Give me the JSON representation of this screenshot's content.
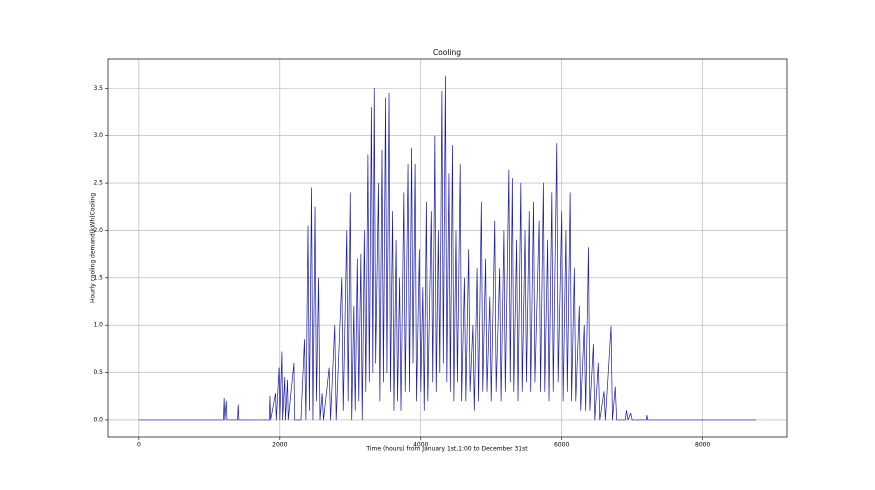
{
  "chart_data": {
    "type": "line",
    "title": "Cooling",
    "xlabel": "Time (hours) from January 1st,1:00 to December 31st",
    "ylabel": "Hourly cooling demand(kWh)Cooling",
    "color": "#1a1aa6",
    "grid": true,
    "xlim": [
      -438,
      9197
    ],
    "ylim": [
      -0.18,
      3.81
    ],
    "xticks": [
      0,
      2000,
      4000,
      6000,
      8000
    ],
    "yticks": [
      {
        "value": 0,
        "label": "0.0"
      },
      0.5,
      {
        "value": 1,
        "label": "1.0"
      },
      1.5,
      {
        "value": 2,
        "label": "2.0"
      },
      2.5,
      {
        "value": 3,
        "label": "3.0"
      },
      3.5
    ],
    "x": [
      0,
      1200,
      1210,
      1220,
      1240,
      1250,
      1400,
      1410,
      1420,
      1850,
      1860,
      1870,
      1940,
      1950,
      1990,
      2000,
      2030,
      2040,
      2070,
      2080,
      2110,
      2120,
      2200,
      2210,
      2300,
      2350,
      2370,
      2400,
      2420,
      2450,
      2470,
      2500,
      2520,
      2550,
      2570,
      2600,
      2620,
      2700,
      2720,
      2780,
      2800,
      2880,
      2900,
      2950,
      2970,
      3000,
      3020,
      3050,
      3070,
      3100,
      3120,
      3150,
      3170,
      3200,
      3220,
      3250,
      3270,
      3300,
      3320,
      3340,
      3360,
      3400,
      3420,
      3450,
      3470,
      3500,
      3520,
      3550,
      3570,
      3600,
      3620,
      3650,
      3670,
      3700,
      3720,
      3760,
      3780,
      3820,
      3840,
      3870,
      3890,
      3920,
      3940,
      3980,
      4000,
      4030,
      4050,
      4080,
      4100,
      4150,
      4170,
      4200,
      4220,
      4250,
      4270,
      4300,
      4320,
      4350,
      4370,
      4400,
      4420,
      4450,
      4470,
      4500,
      4520,
      4560,
      4580,
      4620,
      4640,
      4680,
      4700,
      4740,
      4760,
      4800,
      4820,
      4860,
      4880,
      4920,
      4940,
      4980,
      5000,
      5050,
      5070,
      5120,
      5140,
      5180,
      5200,
      5250,
      5270,
      5300,
      5320,
      5360,
      5380,
      5420,
      5440,
      5480,
      5500,
      5540,
      5560,
      5600,
      5620,
      5680,
      5700,
      5740,
      5760,
      5800,
      5820,
      5860,
      5880,
      5930,
      5950,
      6000,
      6020,
      6060,
      6080,
      6120,
      6140,
      6180,
      6200,
      6250,
      6270,
      6320,
      6340,
      6380,
      6400,
      6450,
      6470,
      6520,
      6540,
      6600,
      6620,
      6700,
      6720,
      6760,
      6780,
      6900,
      6920,
      6940,
      6980,
      7000,
      7200,
      7210,
      7220,
      8759
    ],
    "values": [
      0,
      0,
      0.23,
      0,
      0.2,
      0,
      0,
      0.16,
      0,
      0,
      0.25,
      0,
      0.28,
      0,
      0.55,
      0,
      0.72,
      0,
      0.45,
      0,
      0.42,
      0,
      0.6,
      0,
      0,
      0.85,
      0,
      2.05,
      0.1,
      2.45,
      0,
      2.25,
      0.2,
      1.5,
      0,
      0.28,
      0,
      0.55,
      0,
      1.0,
      0,
      1.5,
      0.1,
      2.0,
      0.2,
      2.4,
      0,
      1.2,
      0.1,
      1.7,
      0.2,
      1.75,
      0,
      2.0,
      0.3,
      2.8,
      0.4,
      3.3,
      0.5,
      3.5,
      0.6,
      2.5,
      0.2,
      2.85,
      0.4,
      3.4,
      0.5,
      3.45,
      0.3,
      2.2,
      0.1,
      1.9,
      0.2,
      1.5,
      0.1,
      2.4,
      0.3,
      2.7,
      0.3,
      2.87,
      0.6,
      2.7,
      0.2,
      1.8,
      0.3,
      1.4,
      0.1,
      2.3,
      0.2,
      2.2,
      0.4,
      3.0,
      0.3,
      2.0,
      0.5,
      3.47,
      0.6,
      3.63,
      0.4,
      2.6,
      0.3,
      2.9,
      0.2,
      2.0,
      0.4,
      2.7,
      0.2,
      1.5,
      0.2,
      1.8,
      0.3,
      1.0,
      0.1,
      1.6,
      0.2,
      2.3,
      0.3,
      1.7,
      0.3,
      1.3,
      0.2,
      2.1,
      0.3,
      1.6,
      0.2,
      2.0,
      0.3,
      2.64,
      0.4,
      2.55,
      0.3,
      1.9,
      0.2,
      2.5,
      0.3,
      2.0,
      0.4,
      2.2,
      0.3,
      2.3,
      0.4,
      2.1,
      0.3,
      2.5,
      0.3,
      1.9,
      0.2,
      2.4,
      0.3,
      2.92,
      0.4,
      2.2,
      0.2,
      2.0,
      0.3,
      2.4,
      0.2,
      1.6,
      0.2,
      1.2,
      0.1,
      1.0,
      0.1,
      1.82,
      0.1,
      0.8,
      0,
      0.6,
      0,
      0.3,
      0,
      0.99,
      0,
      0.35,
      0,
      0,
      0.1,
      0,
      0.07,
      0,
      0,
      0.05,
      0,
      0
    ]
  }
}
